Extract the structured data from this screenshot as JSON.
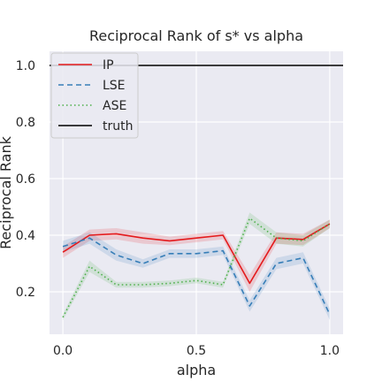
{
  "chart_data": {
    "type": "line",
    "title": "Reciprocal Rank of s* vs alpha",
    "xlabel": "alpha",
    "ylabel": "Reciprocal Rank",
    "xlim": [
      -0.05,
      1.05
    ],
    "ylim": [
      0.05,
      1.05
    ],
    "xticks": [
      0.0,
      0.5,
      1.0
    ],
    "xtick_labels": [
      "0.0",
      "0.5",
      "1.0"
    ],
    "yticks": [
      0.2,
      0.4,
      0.6,
      0.8,
      1.0
    ],
    "ytick_labels": [
      "0.2",
      "0.4",
      "0.6",
      "0.8",
      "1.0"
    ],
    "grid": true,
    "legend_position": "top-left",
    "x": [
      0.0,
      0.1,
      0.2,
      0.3,
      0.4,
      0.5,
      0.6,
      0.7,
      0.8,
      0.9,
      1.0
    ],
    "series": [
      {
        "name": "IP",
        "color": "#e41a1c",
        "linestyle": "solid",
        "values": [
          0.34,
          0.4,
          0.405,
          0.39,
          0.38,
          0.39,
          0.4,
          0.23,
          0.39,
          0.385,
          0.44
        ],
        "lower": [
          0.32,
          0.38,
          0.385,
          0.37,
          0.365,
          0.375,
          0.385,
          0.2,
          0.37,
          0.365,
          0.425
        ],
        "upper": [
          0.36,
          0.42,
          0.425,
          0.41,
          0.395,
          0.405,
          0.415,
          0.26,
          0.41,
          0.405,
          0.455
        ]
      },
      {
        "name": "LSE",
        "color": "#377eb8",
        "linestyle": "dashed",
        "values": [
          0.36,
          0.39,
          0.33,
          0.3,
          0.335,
          0.335,
          0.345,
          0.15,
          0.3,
          0.32,
          0.12
        ],
        "lower": [
          0.34,
          0.37,
          0.31,
          0.285,
          0.32,
          0.32,
          0.33,
          0.13,
          0.28,
          0.3,
          0.1
        ],
        "upper": [
          0.38,
          0.41,
          0.35,
          0.315,
          0.35,
          0.35,
          0.36,
          0.17,
          0.32,
          0.34,
          0.14
        ]
      },
      {
        "name": "ASE",
        "color": "#4daf4a",
        "linestyle": "dotted",
        "values": [
          0.11,
          0.29,
          0.225,
          0.225,
          0.23,
          0.24,
          0.225,
          0.46,
          0.39,
          0.38,
          0.44
        ],
        "lower": [
          0.1,
          0.27,
          0.215,
          0.215,
          0.22,
          0.23,
          0.215,
          0.44,
          0.37,
          0.36,
          0.425
        ],
        "upper": [
          0.12,
          0.31,
          0.235,
          0.235,
          0.24,
          0.25,
          0.235,
          0.48,
          0.41,
          0.4,
          0.455
        ]
      },
      {
        "name": "truth",
        "color": "#000000",
        "linestyle": "solid",
        "values": [
          1.0,
          1.0,
          1.0,
          1.0,
          1.0,
          1.0,
          1.0,
          1.0,
          1.0,
          1.0,
          1.0
        ]
      }
    ]
  },
  "colors": {
    "plot_background": "#eaeaf2",
    "grid": "#ffffff",
    "text": "#262626"
  }
}
